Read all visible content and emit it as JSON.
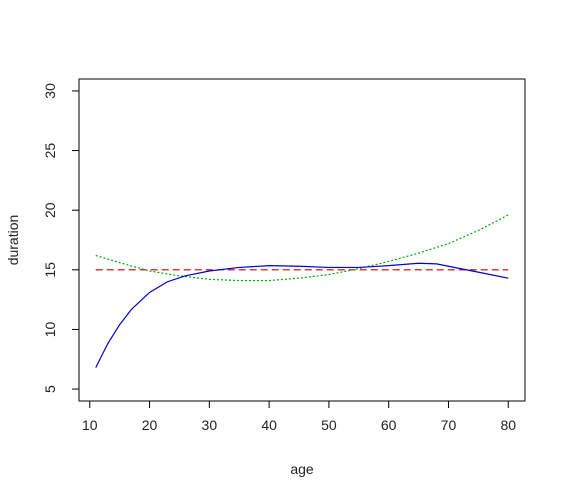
{
  "chart_data": {
    "type": "line",
    "title": "",
    "xlabel": "age",
    "ylabel": "duration",
    "xlim": [
      8.2,
      82.8
    ],
    "ylim": [
      4,
      31
    ],
    "xticks": [
      10,
      20,
      30,
      40,
      50,
      60,
      70,
      80
    ],
    "yticks": [
      5,
      10,
      15,
      20,
      25,
      30
    ],
    "grid": false,
    "legend": "none",
    "series": [
      {
        "color": "#cc0000",
        "style": "dashed",
        "x": [
          11,
          80
        ],
        "y": [
          15.0,
          15.0
        ]
      },
      {
        "color": "#00aa00",
        "style": "dotted",
        "x": [
          11,
          15,
          20,
          25,
          30,
          35,
          40,
          45,
          50,
          55,
          60,
          65,
          70,
          75,
          80
        ],
        "y": [
          16.2,
          15.6,
          14.9,
          14.5,
          14.2,
          14.1,
          14.1,
          14.3,
          14.6,
          15.1,
          15.7,
          16.4,
          17.2,
          18.3,
          19.6
        ]
      },
      {
        "color": "#0000cc",
        "style": "solid",
        "x": [
          11,
          13,
          15,
          17,
          20,
          23,
          26,
          30,
          35,
          40,
          45,
          50,
          55,
          60,
          65,
          68,
          72,
          76,
          80
        ],
        "y": [
          6.8,
          8.8,
          10.4,
          11.7,
          13.1,
          14.0,
          14.5,
          14.9,
          15.2,
          15.35,
          15.3,
          15.2,
          15.2,
          15.35,
          15.55,
          15.5,
          15.1,
          14.7,
          14.3
        ]
      }
    ]
  }
}
